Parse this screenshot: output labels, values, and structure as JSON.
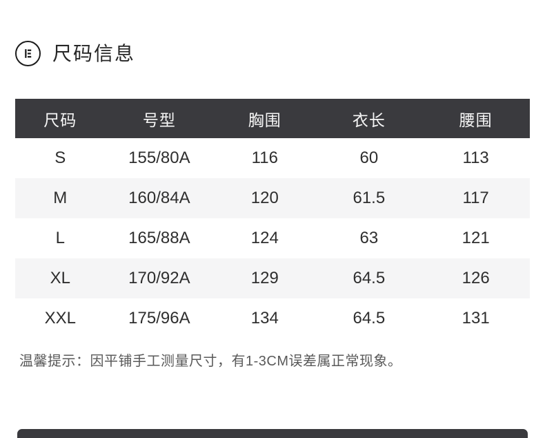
{
  "header": {
    "title": "尺码信息",
    "icon": "ruler-circle-icon"
  },
  "size_table": {
    "columns": [
      "尺码",
      "号型",
      "胸围",
      "衣长",
      "腰围"
    ],
    "rows": [
      [
        "S",
        "155/80A",
        "116",
        "60",
        "113"
      ],
      [
        "M",
        "160/84A",
        "120",
        "61.5",
        "117"
      ],
      [
        "L",
        "165/88A",
        "124",
        "63",
        "121"
      ],
      [
        "XL",
        "170/92A",
        "129",
        "64.5",
        "126"
      ],
      [
        "XXL",
        "175/96A",
        "134",
        "64.5",
        "131"
      ]
    ],
    "header_bg": "#3a3a3e",
    "header_text_color": "#f7f7f7",
    "stripe_bg": "#f5f5f6",
    "body_text_color": "#2e2e2e"
  },
  "footer": {
    "tip": "温馨提示：因平铺手工测量尺寸，有1-3CM误差属正常现象。"
  }
}
